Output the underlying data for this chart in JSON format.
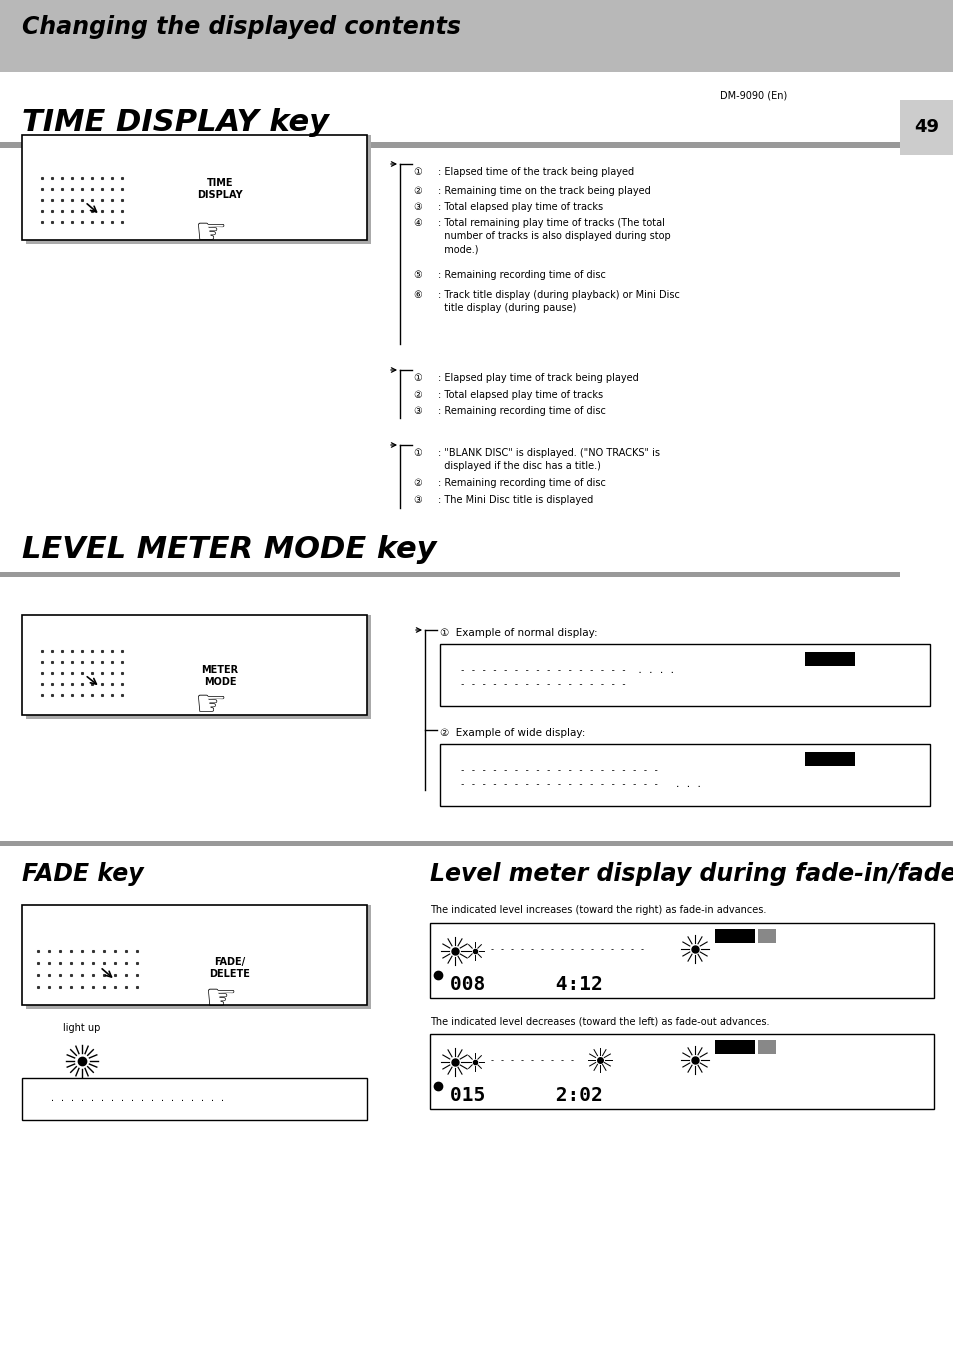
{
  "page_bg": "#ffffff",
  "header_bg": "#b8b8b8",
  "header_text": "Changing the displayed contents",
  "title1": "TIME DISPLAY key",
  "title2": "LEVEL METER MODE key",
  "title3_left": "FADE key",
  "title3_right": "Level meter display during fade-in/fade-out",
  "page_number": "49",
  "model": "DM-9090 (En)",
  "group1": [
    [
      "①",
      ": Elapsed time of the track being played"
    ],
    [
      "②",
      ": Remaining time on the track being played"
    ],
    [
      "③",
      ": Total elapsed play time of tracks"
    ],
    [
      "④",
      ": Total remaining play time of tracks (The total\n  number of tracks is also displayed during stop\n  mode.)"
    ],
    [
      "⑤",
      ": Remaining recording time of disc"
    ],
    [
      "⑥",
      ": Track title display (during playback) or Mini Disc\n  title display (during pause)"
    ]
  ],
  "group2": [
    [
      "①",
      ": Elapsed play time of track being played"
    ],
    [
      "②",
      ": Total elapsed play time of tracks"
    ],
    [
      "③",
      ": Remaining recording time of disc"
    ]
  ],
  "group3": [
    [
      "①",
      ": \"BLANK DISC\" is displayed. (\"NO TRACKS\" is\n  displayed if the disc has a title.)"
    ],
    [
      "②",
      ": Remaining recording time of disc"
    ],
    [
      "③",
      ": The Mini Disc title is displayed"
    ]
  ],
  "normal_display_label": "①  Example of normal display:",
  "wide_display_label": "②  Example of wide display:",
  "fade_in_label": "The indicated level increases (toward the right) as fade-in advances.",
  "fade_out_label": "The indicated level decreases (toward the left) as fade-out advances.",
  "fade_in_time": "008     4:12",
  "fade_out_time": "015     2:02"
}
